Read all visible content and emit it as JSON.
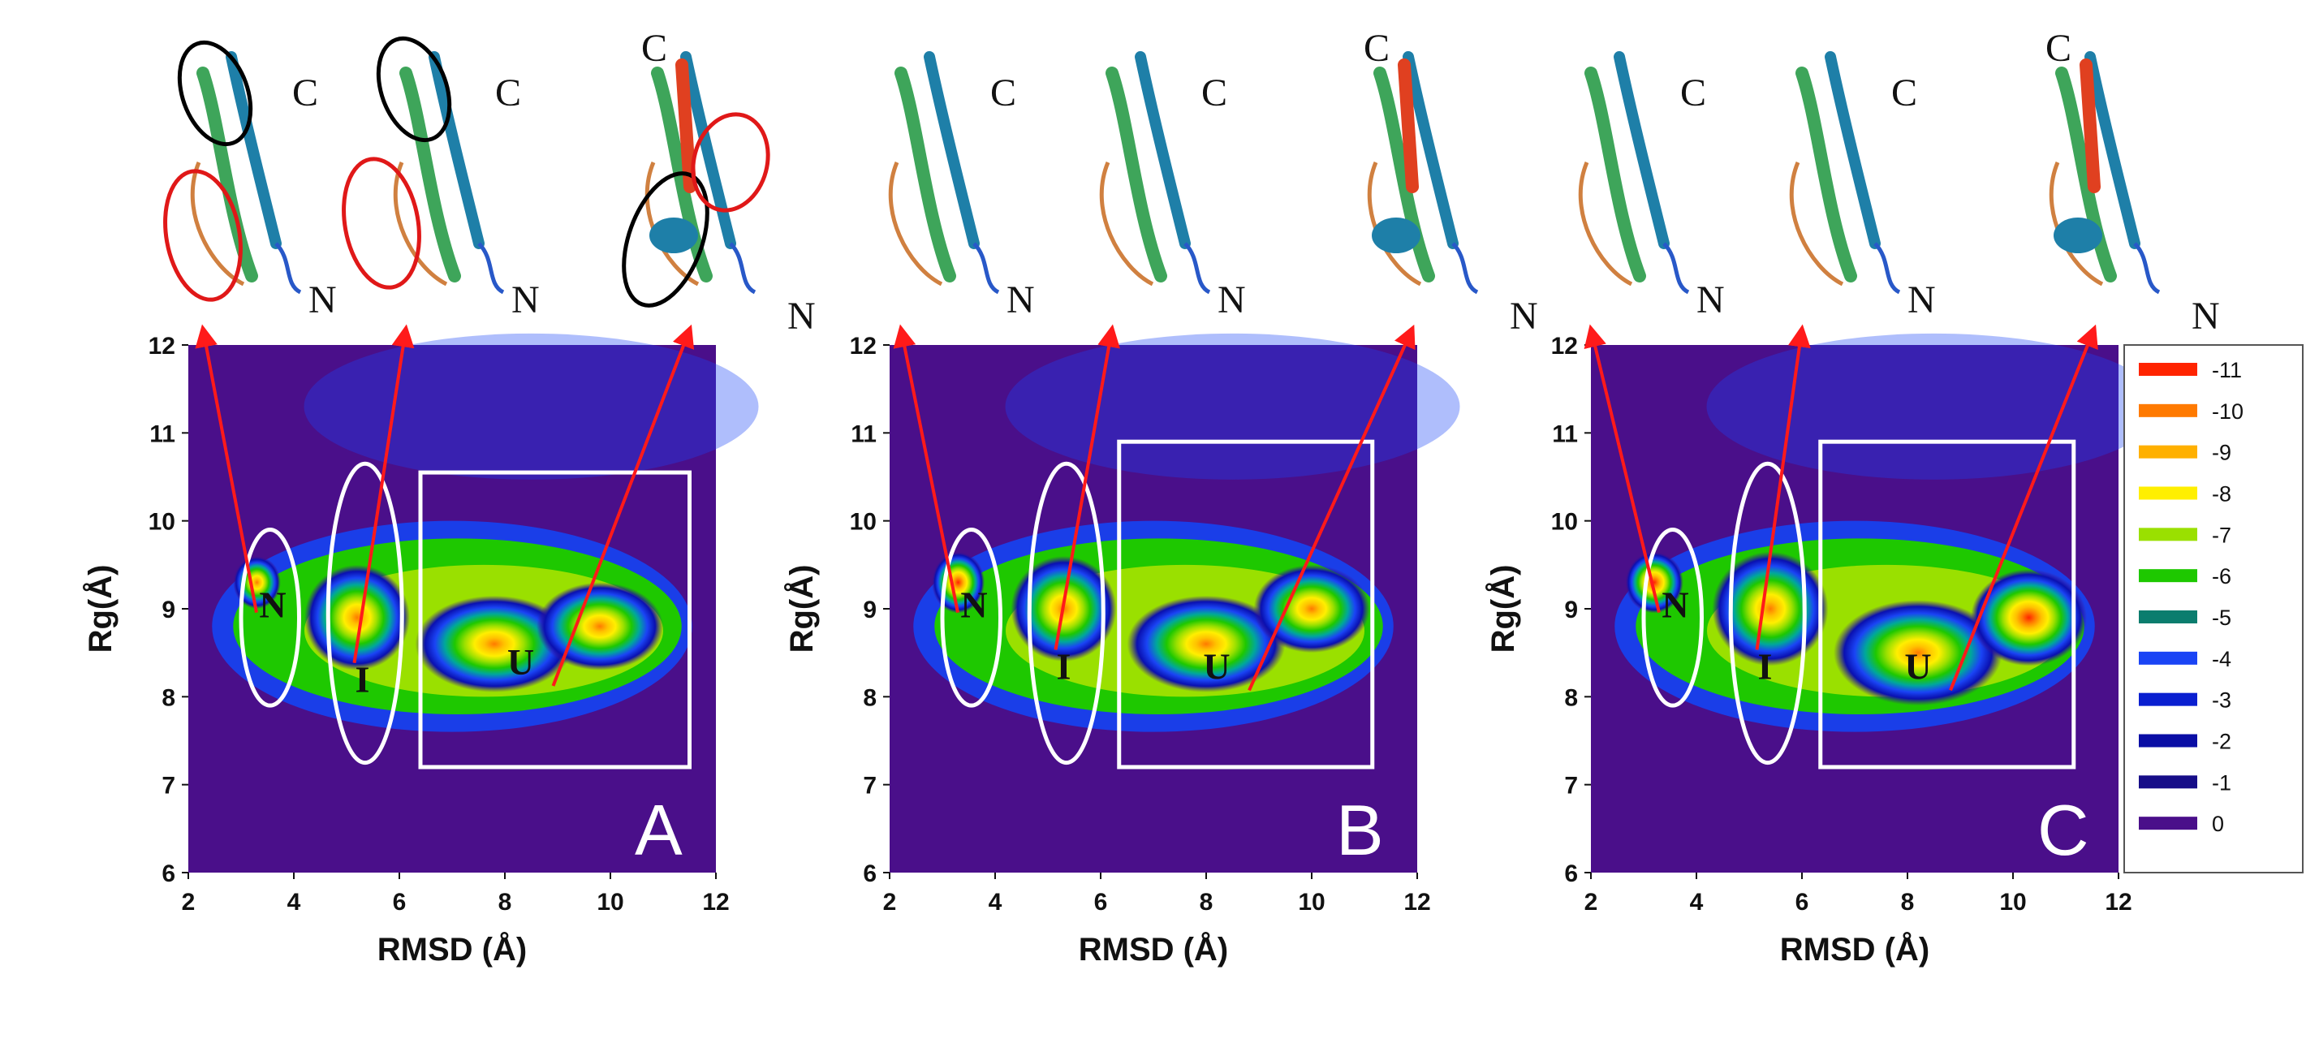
{
  "chart_data": [
    {
      "type": "heatmap",
      "panel": "A",
      "xlabel": "RMSD (Å)",
      "ylabel": "Rg(Å)",
      "xlim": [
        2,
        12
      ],
      "ylim": [
        6,
        12
      ],
      "xticks": [
        "2",
        "4",
        "6",
        "8",
        "10",
        "12"
      ],
      "yticks": [
        "6",
        "7",
        "8",
        "9",
        "10",
        "11",
        "12"
      ],
      "basins": [
        {
          "x": 3.3,
          "y": 9.3,
          "sx": 0.45,
          "sy": 0.3,
          "value": -9
        },
        {
          "x": 5.2,
          "y": 8.9,
          "sx": 1.0,
          "sy": 0.6,
          "value": -7
        },
        {
          "x": 7.8,
          "y": 8.6,
          "sx": 1.5,
          "sy": 0.55,
          "value": -8
        },
        {
          "x": 9.8,
          "y": 8.8,
          "sx": 1.2,
          "sy": 0.5,
          "value": -8
        }
      ],
      "states": [
        {
          "label": "N",
          "x": 3.6,
          "y": 9.05
        },
        {
          "label": "I",
          "x": 5.3,
          "y": 8.2
        },
        {
          "label": "U",
          "x": 8.3,
          "y": 8.4
        }
      ],
      "terminals": {
        "c": "C",
        "n": "N"
      }
    },
    {
      "type": "heatmap",
      "panel": "B",
      "xlabel": "RMSD (Å)",
      "ylabel": "Rg(Å)",
      "xlim": [
        2,
        12
      ],
      "ylim": [
        6,
        12
      ],
      "xticks": [
        "2",
        "4",
        "6",
        "8",
        "10",
        "12"
      ],
      "yticks": [
        "6",
        "7",
        "8",
        "9",
        "10",
        "11",
        "12"
      ],
      "basins": [
        {
          "x": 3.3,
          "y": 9.3,
          "sx": 0.5,
          "sy": 0.35,
          "value": -10
        },
        {
          "x": 5.3,
          "y": 9.0,
          "sx": 1.0,
          "sy": 0.6,
          "value": -7.5
        },
        {
          "x": 8.0,
          "y": 8.6,
          "sx": 1.5,
          "sy": 0.55,
          "value": -8.5
        },
        {
          "x": 10.0,
          "y": 9.0,
          "sx": 1.1,
          "sy": 0.5,
          "value": -9
        }
      ],
      "states": [
        {
          "label": "N",
          "x": 3.6,
          "y": 9.05
        },
        {
          "label": "I",
          "x": 5.3,
          "y": 8.35
        },
        {
          "label": "U",
          "x": 8.2,
          "y": 8.35
        }
      ],
      "terminals": {
        "c": "C",
        "n": "N"
      }
    },
    {
      "type": "heatmap",
      "panel": "C",
      "xlabel": "RMSD (Å)",
      "ylabel": "Rg(Å)",
      "xlim": [
        2,
        12
      ],
      "ylim": [
        6,
        12
      ],
      "xticks": [
        "2",
        "4",
        "6",
        "8",
        "10",
        "12"
      ],
      "yticks": [
        "6",
        "7",
        "8",
        "9",
        "10",
        "11",
        "12"
      ],
      "basins": [
        {
          "x": 3.2,
          "y": 9.3,
          "sx": 0.55,
          "sy": 0.35,
          "value": -11
        },
        {
          "x": 5.4,
          "y": 9.0,
          "sx": 1.1,
          "sy": 0.65,
          "value": -8
        },
        {
          "x": 8.2,
          "y": 8.5,
          "sx": 1.6,
          "sy": 0.6,
          "value": -9
        },
        {
          "x": 10.3,
          "y": 8.9,
          "sx": 1.1,
          "sy": 0.55,
          "value": -10
        }
      ],
      "states": [
        {
          "label": "N",
          "x": 3.6,
          "y": 9.05
        },
        {
          "label": "I",
          "x": 5.3,
          "y": 8.35
        },
        {
          "label": "U",
          "x": 8.2,
          "y": 8.35
        }
      ],
      "terminals": {
        "c": "C",
        "n": "N"
      }
    }
  ],
  "legend": {
    "entries": [
      {
        "label": "-11",
        "color": "#ff2400"
      },
      {
        "label": "-10",
        "color": "#ff7a00"
      },
      {
        "label": "-9",
        "color": "#ffb000"
      },
      {
        "label": "-8",
        "color": "#ffef00"
      },
      {
        "label": "-7",
        "color": "#9ae000"
      },
      {
        "label": "-6",
        "color": "#1ec800"
      },
      {
        "label": "-5",
        "color": "#0b7d6e"
      },
      {
        "label": "-4",
        "color": "#1a44f5"
      },
      {
        "label": "-3",
        "color": "#0a1fd0"
      },
      {
        "label": "-2",
        "color": "#0a0ea5"
      },
      {
        "label": "-1",
        "color": "#160d88"
      },
      {
        "label": "0",
        "color": "#4a0f8a"
      }
    ]
  },
  "colors": {
    "background_well": "#4a0f8a",
    "arrow": "#ff1a1a",
    "outline": "#ffffff"
  }
}
